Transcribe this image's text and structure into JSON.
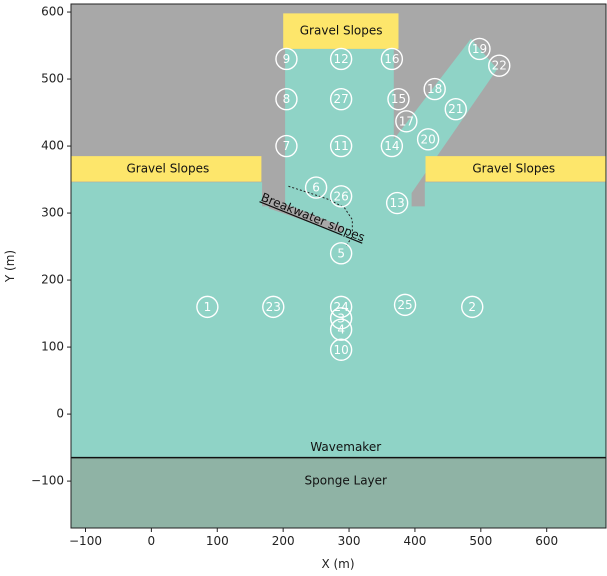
{
  "chart_data": {
    "type": "scatter",
    "title": "",
    "xlabel": "X (m)",
    "ylabel": "Y (m)",
    "xlim": [
      -122,
      690
    ],
    "ylim": [
      -170,
      612
    ],
    "xticks": [
      -100,
      0,
      100,
      200,
      300,
      400,
      500,
      600
    ],
    "yticks": [
      -100,
      0,
      100,
      200,
      300,
      400,
      500,
      600
    ],
    "tick_labels_x": [
      "−100",
      "0",
      "100",
      "200",
      "300",
      "400",
      "500",
      "600"
    ],
    "tick_labels_y": [
      "−100",
      "0",
      "100",
      "200",
      "300",
      "400",
      "500",
      "600"
    ],
    "grid": false,
    "colors": {
      "land": "#a8a8a8",
      "water": "#8fd3c6",
      "sponge": "#8fb3a5",
      "gravel": "#fde66b",
      "gauge_stroke": "#ffffff",
      "wavemaker_line": "#111111",
      "breakwater": "#a8a8a8"
    },
    "regions": {
      "land": [
        [
          -122,
          612
        ],
        [
          690,
          612
        ],
        [
          690,
          -170
        ],
        [
          -122,
          -170
        ]
      ],
      "water": [
        [
          -122,
          -65
        ],
        [
          690,
          -65
        ],
        [
          690,
          346
        ],
        [
          415,
          346
        ],
        [
          415,
          310
        ],
        [
          395,
          310
        ],
        [
          395,
          330
        ],
        [
          525,
          515
        ],
        [
          485,
          560
        ],
        [
          368,
          410
        ],
        [
          368,
          545
        ],
        [
          203,
          545
        ],
        [
          203,
          310
        ],
        [
          168,
          310
        ],
        [
          168,
          346
        ],
        [
          -122,
          346
        ]
      ],
      "sponge": [
        [
          -122,
          -170
        ],
        [
          690,
          -170
        ],
        [
          690,
          -65
        ],
        [
          -122,
          -65
        ]
      ],
      "gravel_left": [
        [
          -122,
          347
        ],
        [
          167,
          347
        ],
        [
          167,
          385
        ],
        [
          -122,
          385
        ]
      ],
      "gravel_right": [
        [
          416,
          347
        ],
        [
          690,
          347
        ],
        [
          690,
          385
        ],
        [
          416,
          385
        ]
      ],
      "gravel_top": [
        [
          200,
          545
        ],
        [
          375,
          545
        ],
        [
          375,
          598
        ],
        [
          200,
          598
        ]
      ],
      "breakwater": [
        [
          178,
          318
        ],
        [
          192,
          318
        ],
        [
          290,
          280
        ],
        [
          290,
          272
        ],
        [
          285,
          271
        ],
        [
          178,
          307
        ]
      ]
    },
    "breakwater_toe_curve": [
      [
        208,
        340
      ],
      [
        240,
        330
      ],
      [
        270,
        320
      ],
      [
        293,
        308
      ],
      [
        305,
        290
      ],
      [
        305,
        265
      ],
      [
        295,
        250
      ]
    ],
    "annotations": [
      {
        "text": "Gravel Slopes",
        "x": 25,
        "y": 366,
        "region": "gravel_left"
      },
      {
        "text": "Gravel Slopes",
        "x": 550,
        "y": 366,
        "region": "gravel_right"
      },
      {
        "text": "Gravel Slopes",
        "x": 288,
        "y": 572,
        "region": "gravel_top"
      },
      {
        "text": "Wavemaker",
        "x": 295,
        "y": -50
      },
      {
        "text": "Sponge Layer",
        "x": 295,
        "y": -100
      },
      {
        "text": "Breakwater slopes",
        "x": 245,
        "y": 293,
        "rotate": 22
      }
    ],
    "wavemaker_y": -65,
    "series": [
      {
        "points": [
          {
            "label": "1",
            "x": 85,
            "y": 160
          },
          {
            "label": "2",
            "x": 487,
            "y": 160
          },
          {
            "label": "3",
            "x": 288,
            "y": 143
          },
          {
            "label": "4",
            "x": 288,
            "y": 126
          },
          {
            "label": "5",
            "x": 288,
            "y": 240
          },
          {
            "label": "6",
            "x": 250,
            "y": 338
          },
          {
            "label": "7",
            "x": 205,
            "y": 400
          },
          {
            "label": "8",
            "x": 205,
            "y": 470
          },
          {
            "label": "9",
            "x": 205,
            "y": 530
          },
          {
            "label": "10",
            "x": 288,
            "y": 96
          },
          {
            "label": "11",
            "x": 288,
            "y": 400
          },
          {
            "label": "12",
            "x": 288,
            "y": 530
          },
          {
            "label": "13",
            "x": 373,
            "y": 315
          },
          {
            "label": "14",
            "x": 365,
            "y": 400
          },
          {
            "label": "15",
            "x": 375,
            "y": 470
          },
          {
            "label": "16",
            "x": 365,
            "y": 530
          },
          {
            "label": "17",
            "x": 387,
            "y": 437
          },
          {
            "label": "18",
            "x": 430,
            "y": 485
          },
          {
            "label": "19",
            "x": 498,
            "y": 545
          },
          {
            "label": "20",
            "x": 420,
            "y": 410
          },
          {
            "label": "21",
            "x": 462,
            "y": 455
          },
          {
            "label": "22",
            "x": 528,
            "y": 520
          },
          {
            "label": "23",
            "x": 185,
            "y": 160
          },
          {
            "label": "24",
            "x": 288,
            "y": 160
          },
          {
            "label": "25",
            "x": 385,
            "y": 163
          },
          {
            "label": "26",
            "x": 288,
            "y": 325
          },
          {
            "label": "27",
            "x": 288,
            "y": 470
          }
        ]
      }
    ]
  }
}
